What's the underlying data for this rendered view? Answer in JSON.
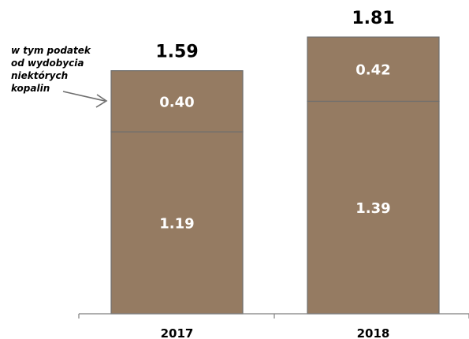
{
  "chart_data": {
    "type": "bar",
    "stacked": true,
    "categories": [
      "2017",
      "2018"
    ],
    "series": [
      {
        "values": [
          1.19,
          1.39
        ]
      },
      {
        "values": [
          0.4,
          0.42
        ]
      }
    ],
    "value_labels": [
      [
        "1.19",
        "1.39"
      ],
      [
        "0.40",
        "0.42"
      ]
    ],
    "totals": [
      1.59,
      1.81
    ],
    "total_labels": [
      "1.59",
      "1.81"
    ],
    "annotation": {
      "lines": [
        "w tym podatek",
        "od wydobycia",
        "niektórych",
        "kopalin"
      ]
    },
    "ylim": [
      0,
      1.81
    ],
    "grid": false,
    "legend": "none"
  },
  "colors": {
    "bar_fill": "#957B62",
    "bar_stroke": "#6E6E6E",
    "segment_divider": "#6E6E6E",
    "axis": "#7F7F7F",
    "inner_label": "#FFFFFF",
    "total_label": "#000000",
    "arrow": "#6E6E6E"
  }
}
